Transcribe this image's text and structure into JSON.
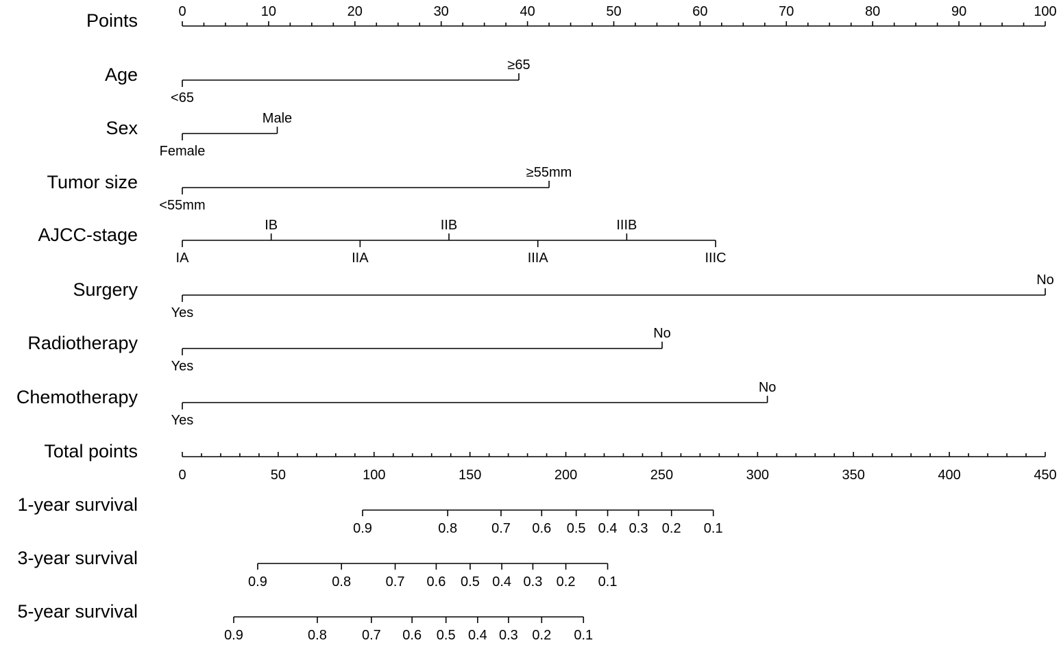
{
  "chart_data": {
    "type": "nomogram",
    "axis_color": "#000000",
    "points_scale": {
      "label": "Points",
      "min": 0,
      "max": 100,
      "labeled_ticks": [
        0,
        10,
        20,
        30,
        40,
        50,
        60,
        70,
        80,
        90,
        100
      ],
      "minor_step": 2.5
    },
    "variables": [
      {
        "label": "Age",
        "levels": [
          {
            "name": "<65",
            "points": 0,
            "side": "below"
          },
          {
            "name": "≥65",
            "points": 39,
            "side": "above"
          }
        ]
      },
      {
        "label": "Sex",
        "levels": [
          {
            "name": "Female",
            "points": 0,
            "side": "below"
          },
          {
            "name": "Male",
            "points": 11,
            "side": "above"
          }
        ]
      },
      {
        "label": "Tumor size",
        "levels": [
          {
            "name": "<55mm",
            "points": 0,
            "side": "below"
          },
          {
            "name": "≥55mm",
            "points": 42.5,
            "side": "above"
          }
        ]
      },
      {
        "label": "AJCC-stage",
        "levels": [
          {
            "name": "IA",
            "points": 0,
            "side": "below"
          },
          {
            "name": "IB",
            "points": 10.3,
            "side": "above"
          },
          {
            "name": "IIA",
            "points": 20.6,
            "side": "below"
          },
          {
            "name": "IIB",
            "points": 30.9,
            "side": "above"
          },
          {
            "name": "IIIA",
            "points": 41.2,
            "side": "below"
          },
          {
            "name": "IIIB",
            "points": 51.5,
            "side": "above"
          },
          {
            "name": "IIIC",
            "points": 61.8,
            "side": "below"
          }
        ]
      },
      {
        "label": "Surgery",
        "levels": [
          {
            "name": "Yes",
            "points": 0,
            "side": "below"
          },
          {
            "name": "No",
            "points": 100,
            "side": "above"
          }
        ]
      },
      {
        "label": "Radiotherapy",
        "levels": [
          {
            "name": "Yes",
            "points": 0,
            "side": "below"
          },
          {
            "name": "No",
            "points": 55.6,
            "side": "above"
          }
        ]
      },
      {
        "label": "Chemotherapy",
        "levels": [
          {
            "name": "Yes",
            "points": 0,
            "side": "below"
          },
          {
            "name": "No",
            "points": 67.8,
            "side": "above"
          }
        ]
      }
    ],
    "total_points_scale": {
      "label": "Total points",
      "min": 0,
      "max": 450,
      "labeled_ticks": [
        0,
        50,
        100,
        150,
        200,
        250,
        300,
        350,
        400,
        450
      ],
      "minor_step": 10
    },
    "survival_scales": [
      {
        "label": "1-year survival",
        "ticks": [
          {
            "value": "0.9",
            "total_points": 94
          },
          {
            "value": "0.8",
            "total_points": 138.4
          },
          {
            "value": "0.7",
            "total_points": 166.2
          },
          {
            "value": "0.6",
            "total_points": 187.4
          },
          {
            "value": "0.5",
            "total_points": 205.4
          },
          {
            "value": "0.4",
            "total_points": 221.8
          },
          {
            "value": "0.3",
            "total_points": 237.9
          },
          {
            "value": "0.2",
            "total_points": 255.1
          },
          {
            "value": "0.1",
            "total_points": 276.9
          }
        ]
      },
      {
        "label": "3-year survival",
        "ticks": [
          {
            "value": "0.9",
            "total_points": 39.3
          },
          {
            "value": "0.8",
            "total_points": 83
          },
          {
            "value": "0.7",
            "total_points": 111
          },
          {
            "value": "0.6",
            "total_points": 132.4
          },
          {
            "value": "0.5",
            "total_points": 150.1
          },
          {
            "value": "0.4",
            "total_points": 166.6
          },
          {
            "value": "0.3",
            "total_points": 182.8
          },
          {
            "value": "0.2",
            "total_points": 200
          },
          {
            "value": "0.1",
            "total_points": 221.8
          }
        ]
      },
      {
        "label": "5-year survival",
        "ticks": [
          {
            "value": "0.9",
            "total_points": 26.8
          },
          {
            "value": "0.8",
            "total_points": 70.4
          },
          {
            "value": "0.7",
            "total_points": 98.6
          },
          {
            "value": "0.6",
            "total_points": 119.8
          },
          {
            "value": "0.5",
            "total_points": 137.5
          },
          {
            "value": "0.4",
            "total_points": 154
          },
          {
            "value": "0.3",
            "total_points": 170.1
          },
          {
            "value": "0.2",
            "total_points": 187.4
          },
          {
            "value": "0.1",
            "total_points": 209.2
          }
        ]
      }
    ]
  }
}
